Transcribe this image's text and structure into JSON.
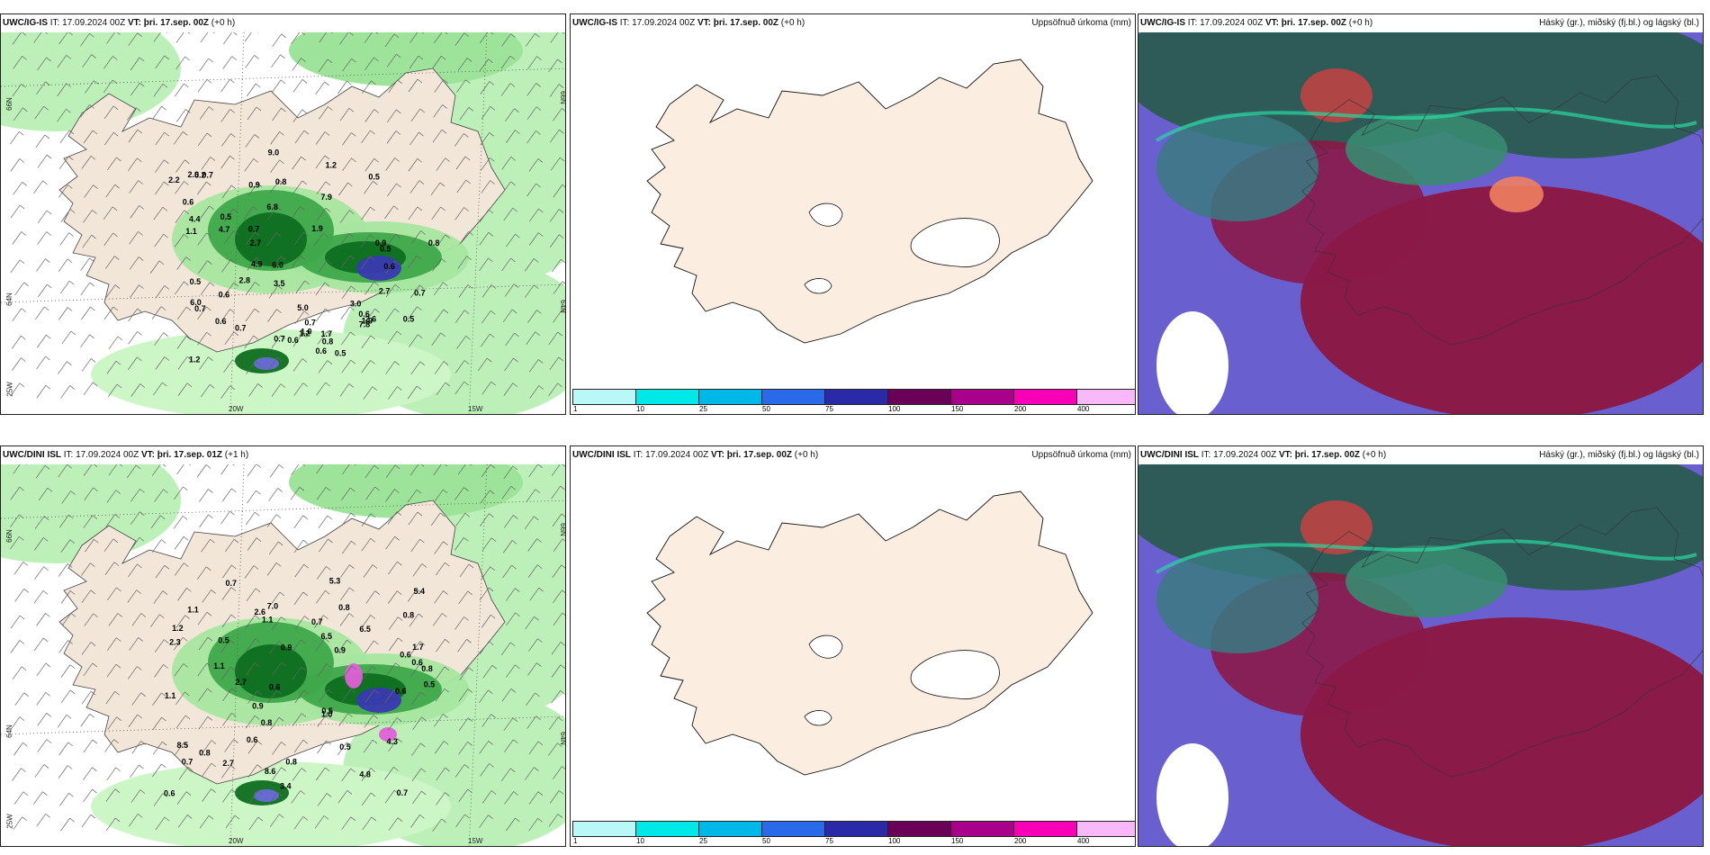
{
  "panels": [
    {
      "model": "UWC/IG-IS",
      "it": "IT: 17.09.2024 00Z",
      "vt": "VT: þri. 17.sep. 00Z",
      "lead": "(+0 h)",
      "right": ""
    },
    {
      "model": "UWC/IG-IS",
      "it": "IT: 17.09.2024 00Z",
      "vt": "VT: þri. 17.sep. 00Z",
      "lead": "(+0 h)",
      "right": "Uppsöfnuð úrkoma (mm)"
    },
    {
      "model": "UWC/IG-IS",
      "it": "IT: 17.09.2024 00Z",
      "vt": "VT: þri. 17.sep. 00Z",
      "lead": "(+0 h)",
      "right": "Háský (gr.), miðský (fj.bl.) og lágský (bl.)"
    },
    {
      "model": "UWC/DINI ISL",
      "it": "IT: 17.09.2024 00Z",
      "vt": "VT: þri. 17.sep. 01Z",
      "lead": "(+1 h)",
      "right": ""
    },
    {
      "model": "UWC/DINI ISL",
      "it": "IT: 17.09.2024 00Z",
      "vt": "VT: þri. 17.sep. 00Z",
      "lead": "(+0 h)",
      "right": "Uppsöfnuð úrkoma (mm)"
    },
    {
      "model": "UWC/DINI ISL",
      "it": "IT: 17.09.2024 00Z",
      "vt": "VT: þri. 17.sep. 00Z",
      "lead": "(+0 h)",
      "right": "Háský (gr.), miðský (fj.bl.) og lágský (bl.)"
    }
  ],
  "colorbar": {
    "ticks": [
      "1",
      "10",
      "25",
      "50",
      "75",
      "100",
      "150",
      "200",
      "400"
    ],
    "colors": [
      "#b8f8f8",
      "#00e8e8",
      "#00b8e8",
      "#2a6ae8",
      "#2a2aa8",
      "#6a0058",
      "#a8008a",
      "#f800b8",
      "#f8b8f8"
    ]
  },
  "axis_labels": {
    "lat66": "66N",
    "lat64": "64N",
    "lon25": "25W",
    "lon20": "20W",
    "lon15": "15W"
  },
  "precip_values_top": [
    "0.7",
    "0.7",
    "1.9",
    "2.2",
    "0.8",
    "0.7",
    "1.0",
    "0.5",
    "0.9",
    "0.5",
    "0.6",
    "0.5",
    "0.6",
    "0.5",
    "0.5",
    "0.8",
    "0.6",
    "1.0",
    "0.7",
    "0.5",
    "0.7",
    "0.6",
    "4.7",
    "2.7",
    "1.7",
    "0.7",
    "1.2",
    "0.6",
    "0.9",
    "0.7",
    "2.0",
    "3.0",
    "2.7",
    "5.0",
    "7.8",
    "6.8",
    "5.2",
    "2.6",
    "6.0",
    "2.8",
    "1.2",
    "0.6",
    "4.9",
    "6.0",
    "1.1",
    "7.9",
    "4.4",
    "3.5",
    "9.0",
    "0.8",
    "1.2",
    "0.6"
  ],
  "precip_values_bottom": [
    "0.5",
    "0.7",
    "0.8",
    "0.5",
    "0.6",
    "0.6",
    "0.8",
    "0.6",
    "0.7",
    "0.6",
    "0.8",
    "0.8",
    "0.9",
    "0.7",
    "1.1",
    "0.5",
    "0.6",
    "0.5",
    "0.8",
    "0.9",
    "1.1",
    "1.7",
    "2.6",
    "2.7",
    "0.9",
    "1.1",
    "2.3",
    "4.3",
    "8.5",
    "5.4",
    "3.4",
    "6.5",
    "2.7",
    "6.5",
    "4.8",
    "8.6",
    "5.3",
    "7.0",
    "1.0",
    "0.6",
    "1.2",
    "0.7",
    "0.8",
    "1.1"
  ]
}
